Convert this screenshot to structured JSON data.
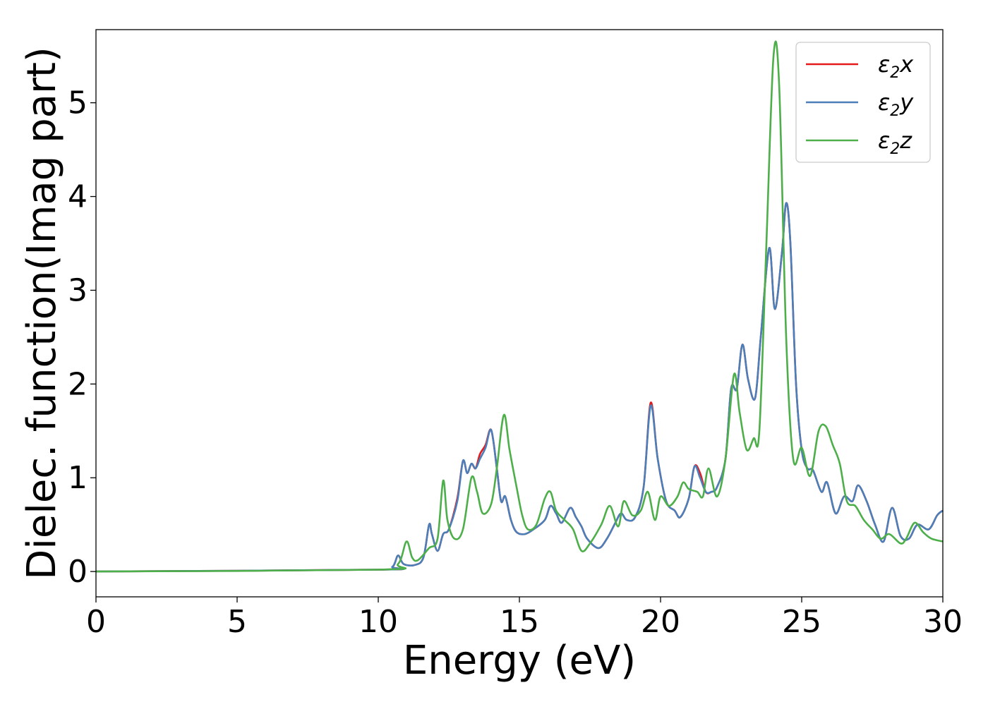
{
  "chart_data": {
    "type": "line",
    "xlabel": "Energy (eV)",
    "ylabel": "Dielec. function(Imag part)",
    "xlim": [
      0,
      30
    ],
    "ylim": [
      -0.27,
      5.78
    ],
    "xticks": [
      0,
      5,
      10,
      15,
      20,
      25,
      30
    ],
    "yticks": [
      0,
      1,
      2,
      3,
      4,
      5
    ],
    "grid": false,
    "legend_position": "top-right",
    "series": [
      {
        "name": "ε2x",
        "legend_base": "ε",
        "legend_sub": "2",
        "legend_tail": "x",
        "color": "#e41a1c",
        "points": [
          [
            0,
            0
          ],
          [
            10,
            0.02
          ],
          [
            10.5,
            0.05
          ],
          [
            10.7,
            0.17
          ],
          [
            10.9,
            0.08
          ],
          [
            11.3,
            0.07
          ],
          [
            11.6,
            0.15
          ],
          [
            11.8,
            0.5
          ],
          [
            11.9,
            0.4
          ],
          [
            12.1,
            0.22
          ],
          [
            12.3,
            0.4
          ],
          [
            12.5,
            0.45
          ],
          [
            12.8,
            0.78
          ],
          [
            13.0,
            1.18
          ],
          [
            13.15,
            1.05
          ],
          [
            13.3,
            1.15
          ],
          [
            13.45,
            1.1
          ],
          [
            13.6,
            1.25
          ],
          [
            13.8,
            1.35
          ],
          [
            14.0,
            1.51
          ],
          [
            14.2,
            1.1
          ],
          [
            14.35,
            0.75
          ],
          [
            14.5,
            0.8
          ],
          [
            14.7,
            0.55
          ],
          [
            14.9,
            0.42
          ],
          [
            15.2,
            0.4
          ],
          [
            15.5,
            0.45
          ],
          [
            15.9,
            0.55
          ],
          [
            16.1,
            0.7
          ],
          [
            16.3,
            0.62
          ],
          [
            16.5,
            0.52
          ],
          [
            16.8,
            0.68
          ],
          [
            17.0,
            0.58
          ],
          [
            17.2,
            0.48
          ],
          [
            17.4,
            0.35
          ],
          [
            17.8,
            0.25
          ],
          [
            18.1,
            0.35
          ],
          [
            18.4,
            0.52
          ],
          [
            18.6,
            0.62
          ],
          [
            18.8,
            0.55
          ],
          [
            19.1,
            0.58
          ],
          [
            19.4,
            0.9
          ],
          [
            19.65,
            1.8
          ],
          [
            19.9,
            1.2
          ],
          [
            20.2,
            0.75
          ],
          [
            20.5,
            0.65
          ],
          [
            20.7,
            0.58
          ],
          [
            21.0,
            0.78
          ],
          [
            21.2,
            1.12
          ],
          [
            21.4,
            1.05
          ],
          [
            21.6,
            0.85
          ],
          [
            21.8,
            0.85
          ],
          [
            22.0,
            0.9
          ],
          [
            22.3,
            1.2
          ],
          [
            22.5,
            1.95
          ],
          [
            22.7,
            1.95
          ],
          [
            22.9,
            2.42
          ],
          [
            23.1,
            2.05
          ],
          [
            23.35,
            1.85
          ],
          [
            23.55,
            2.5
          ],
          [
            23.85,
            3.45
          ],
          [
            24.05,
            2.8
          ],
          [
            24.3,
            3.4
          ],
          [
            24.45,
            3.93
          ],
          [
            24.6,
            3.5
          ],
          [
            24.8,
            2.0
          ],
          [
            25.0,
            1.3
          ],
          [
            25.2,
            1.1
          ],
          [
            25.4,
            1.08
          ],
          [
            25.7,
            0.85
          ],
          [
            25.9,
            0.95
          ],
          [
            26.2,
            0.62
          ],
          [
            26.5,
            0.8
          ],
          [
            26.8,
            0.75
          ],
          [
            27.0,
            0.92
          ],
          [
            27.3,
            0.75
          ],
          [
            27.6,
            0.5
          ],
          [
            27.9,
            0.32
          ],
          [
            28.2,
            0.68
          ],
          [
            28.5,
            0.38
          ],
          [
            28.8,
            0.35
          ],
          [
            29.1,
            0.5
          ],
          [
            29.5,
            0.45
          ],
          [
            29.8,
            0.6
          ],
          [
            30.0,
            0.65
          ]
        ]
      },
      {
        "name": "ε2y",
        "legend_base": "ε",
        "legend_sub": "2",
        "legend_tail": "y",
        "color": "#4a7fba",
        "points": [
          [
            0,
            0
          ],
          [
            10,
            0.02
          ],
          [
            10.5,
            0.05
          ],
          [
            10.7,
            0.17
          ],
          [
            10.9,
            0.08
          ],
          [
            11.3,
            0.07
          ],
          [
            11.6,
            0.15
          ],
          [
            11.8,
            0.5
          ],
          [
            11.9,
            0.4
          ],
          [
            12.1,
            0.22
          ],
          [
            12.3,
            0.4
          ],
          [
            12.5,
            0.45
          ],
          [
            12.8,
            0.75
          ],
          [
            13.0,
            1.18
          ],
          [
            13.15,
            1.05
          ],
          [
            13.3,
            1.15
          ],
          [
            13.45,
            1.1
          ],
          [
            13.6,
            1.2
          ],
          [
            13.8,
            1.32
          ],
          [
            14.0,
            1.51
          ],
          [
            14.2,
            1.1
          ],
          [
            14.35,
            0.75
          ],
          [
            14.5,
            0.8
          ],
          [
            14.7,
            0.55
          ],
          [
            14.9,
            0.42
          ],
          [
            15.2,
            0.4
          ],
          [
            15.5,
            0.45
          ],
          [
            15.9,
            0.55
          ],
          [
            16.1,
            0.7
          ],
          [
            16.3,
            0.62
          ],
          [
            16.5,
            0.52
          ],
          [
            16.8,
            0.68
          ],
          [
            17.0,
            0.58
          ],
          [
            17.2,
            0.48
          ],
          [
            17.4,
            0.35
          ],
          [
            17.8,
            0.25
          ],
          [
            18.1,
            0.35
          ],
          [
            18.4,
            0.52
          ],
          [
            18.6,
            0.62
          ],
          [
            18.8,
            0.55
          ],
          [
            19.1,
            0.58
          ],
          [
            19.4,
            0.9
          ],
          [
            19.65,
            1.77
          ],
          [
            19.9,
            1.2
          ],
          [
            20.2,
            0.75
          ],
          [
            20.5,
            0.65
          ],
          [
            20.7,
            0.58
          ],
          [
            21.0,
            0.78
          ],
          [
            21.2,
            1.12
          ],
          [
            21.4,
            1.0
          ],
          [
            21.6,
            0.85
          ],
          [
            21.8,
            0.85
          ],
          [
            22.0,
            0.9
          ],
          [
            22.3,
            1.2
          ],
          [
            22.5,
            1.95
          ],
          [
            22.7,
            1.95
          ],
          [
            22.9,
            2.42
          ],
          [
            23.1,
            2.05
          ],
          [
            23.35,
            1.85
          ],
          [
            23.55,
            2.5
          ],
          [
            23.85,
            3.45
          ],
          [
            24.05,
            2.8
          ],
          [
            24.3,
            3.4
          ],
          [
            24.45,
            3.93
          ],
          [
            24.6,
            3.5
          ],
          [
            24.8,
            2.0
          ],
          [
            25.0,
            1.3
          ],
          [
            25.2,
            1.1
          ],
          [
            25.4,
            1.08
          ],
          [
            25.7,
            0.85
          ],
          [
            25.9,
            0.95
          ],
          [
            26.2,
            0.62
          ],
          [
            26.5,
            0.8
          ],
          [
            26.8,
            0.75
          ],
          [
            27.0,
            0.92
          ],
          [
            27.3,
            0.75
          ],
          [
            27.6,
            0.5
          ],
          [
            27.9,
            0.32
          ],
          [
            28.2,
            0.68
          ],
          [
            28.5,
            0.38
          ],
          [
            28.8,
            0.35
          ],
          [
            29.1,
            0.5
          ],
          [
            29.5,
            0.45
          ],
          [
            29.8,
            0.6
          ],
          [
            30.0,
            0.65
          ]
        ]
      },
      {
        "name": "ε2z",
        "legend_base": "ε",
        "legend_sub": "2",
        "legend_tail": "z",
        "color": "#4daf4a",
        "points": [
          [
            0,
            0
          ],
          [
            10,
            0.02
          ],
          [
            10.7,
            0.08
          ],
          [
            11.0,
            0.32
          ],
          [
            11.2,
            0.15
          ],
          [
            11.4,
            0.12
          ],
          [
            11.8,
            0.25
          ],
          [
            12.1,
            0.35
          ],
          [
            12.3,
            0.97
          ],
          [
            12.45,
            0.55
          ],
          [
            12.7,
            0.35
          ],
          [
            13.0,
            0.45
          ],
          [
            13.3,
            1.0
          ],
          [
            13.5,
            0.85
          ],
          [
            13.7,
            0.62
          ],
          [
            14.0,
            0.72
          ],
          [
            14.2,
            1.1
          ],
          [
            14.45,
            1.67
          ],
          [
            14.65,
            1.3
          ],
          [
            14.9,
            0.9
          ],
          [
            15.1,
            0.6
          ],
          [
            15.3,
            0.45
          ],
          [
            15.6,
            0.5
          ],
          [
            15.9,
            0.78
          ],
          [
            16.1,
            0.85
          ],
          [
            16.3,
            0.65
          ],
          [
            16.6,
            0.55
          ],
          [
            16.9,
            0.45
          ],
          [
            17.2,
            0.22
          ],
          [
            17.5,
            0.3
          ],
          [
            17.9,
            0.5
          ],
          [
            18.2,
            0.7
          ],
          [
            18.5,
            0.48
          ],
          [
            18.7,
            0.75
          ],
          [
            19.0,
            0.6
          ],
          [
            19.3,
            0.65
          ],
          [
            19.55,
            0.85
          ],
          [
            19.8,
            0.55
          ],
          [
            20.0,
            0.8
          ],
          [
            20.3,
            0.7
          ],
          [
            20.6,
            0.8
          ],
          [
            20.8,
            0.95
          ],
          [
            21.0,
            0.88
          ],
          [
            21.3,
            0.85
          ],
          [
            21.5,
            0.8
          ],
          [
            21.7,
            1.1
          ],
          [
            22.0,
            0.8
          ],
          [
            22.3,
            1.2
          ],
          [
            22.6,
            2.1
          ],
          [
            22.8,
            1.7
          ],
          [
            23.05,
            1.3
          ],
          [
            23.3,
            1.42
          ],
          [
            23.5,
            1.5
          ],
          [
            23.75,
            3.5
          ],
          [
            24.0,
            5.49
          ],
          [
            24.2,
            5.2
          ],
          [
            24.45,
            2.5
          ],
          [
            24.7,
            1.2
          ],
          [
            25.0,
            1.32
          ],
          [
            25.3,
            1.02
          ],
          [
            25.6,
            1.5
          ],
          [
            25.85,
            1.55
          ],
          [
            26.1,
            1.35
          ],
          [
            26.35,
            1.15
          ],
          [
            26.6,
            0.75
          ],
          [
            26.9,
            0.7
          ],
          [
            27.2,
            0.55
          ],
          [
            27.5,
            0.45
          ],
          [
            27.8,
            0.35
          ],
          [
            28.1,
            0.4
          ],
          [
            28.5,
            0.3
          ],
          [
            28.7,
            0.35
          ],
          [
            29.0,
            0.52
          ],
          [
            29.3,
            0.42
          ],
          [
            29.6,
            0.35
          ],
          [
            30.0,
            0.32
          ]
        ]
      }
    ]
  }
}
